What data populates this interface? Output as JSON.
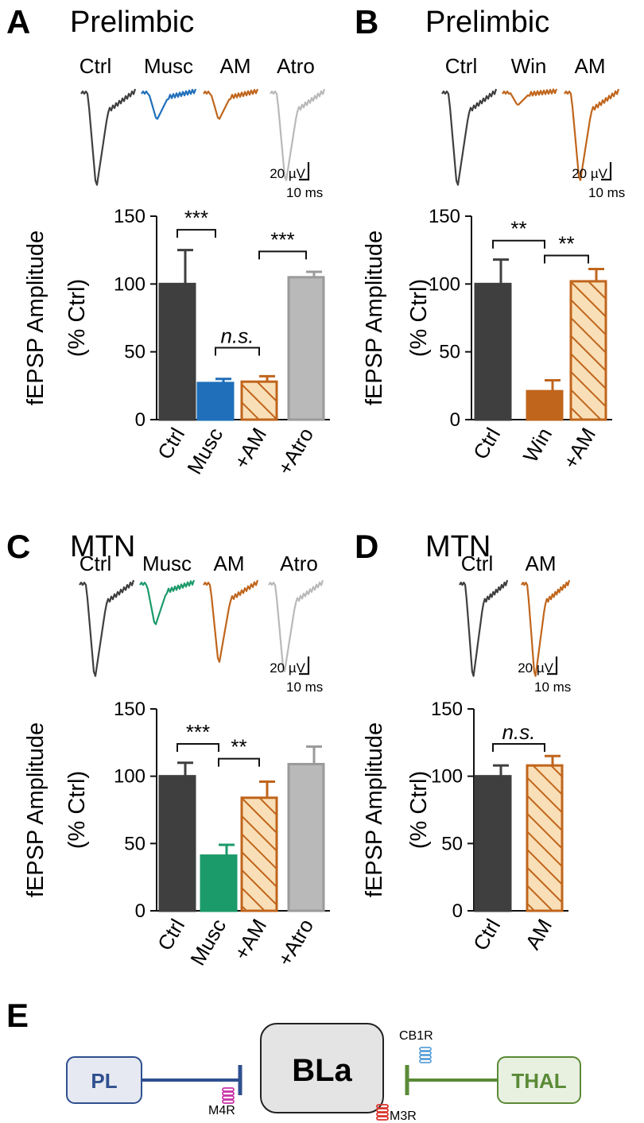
{
  "colors": {
    "ctrl": "#3f3f3f",
    "musc_pl": "#1f6fba",
    "musc_mtn": "#1b9a6a",
    "am": "#c0651c",
    "am_fill": "#f9dfb7",
    "atro": "#b9b9b9",
    "atro_edge": "#9a9a9a",
    "pl_blue": "#2f4f8f",
    "thal_green": "#5a8a36",
    "m4r": "#c832a8",
    "m3r": "#d9342b",
    "cb1r": "#5aa0d8"
  },
  "common": {
    "ylabel_line1": "fEPSP Amplitude",
    "ylabel_line2": "(% Ctrl)",
    "scalebar_v": "20 µV",
    "scalebar_h": "10 ms"
  },
  "panels": [
    {
      "letter": "A",
      "title": "Prelimbic",
      "trace_labels": [
        "Ctrl",
        "Musc",
        "AM",
        "Atro"
      ],
      "trace_colors": [
        "ctrl",
        "musc_pl",
        "am",
        "atro"
      ],
      "trace_depths": [
        1.0,
        0.3,
        0.3,
        0.95
      ]
    },
    {
      "letter": "B",
      "title": "Prelimbic",
      "trace_labels": [
        "Ctrl",
        "Win",
        "AM"
      ],
      "trace_colors": [
        "ctrl",
        "am",
        "am"
      ],
      "trace_depths": [
        1.0,
        0.15,
        0.95
      ]
    },
    {
      "letter": "C",
      "title": "MTN",
      "trace_labels": [
        "Ctrl",
        "Musc",
        "AM",
        "Atro"
      ],
      "trace_colors": [
        "ctrl",
        "musc_mtn",
        "am",
        "atro"
      ],
      "trace_depths": [
        1.0,
        0.45,
        0.85,
        0.95
      ]
    },
    {
      "letter": "D",
      "title": "MTN",
      "trace_labels": [
        "Ctrl",
        "AM"
      ],
      "trace_colors": [
        "ctrl",
        "am"
      ],
      "trace_depths": [
        1.0,
        1.0
      ]
    }
  ],
  "chart_data": [
    {
      "type": "bar",
      "panel": "A",
      "categories": [
        "Ctrl",
        "Musc",
        "+AM",
        "+Atro"
      ],
      "values": [
        100,
        27,
        28,
        105
      ],
      "errors": [
        25,
        3,
        4,
        4
      ],
      "styles": [
        "ctrl",
        "musc_pl",
        "am_hatch",
        "atro"
      ],
      "ylabel": "fEPSP Amplitude (% Ctrl)",
      "ylim": [
        0,
        150
      ],
      "yticks": [
        0,
        50,
        100,
        150
      ],
      "significance": [
        {
          "from": 0,
          "to": 1,
          "label": "***",
          "y": 140
        },
        {
          "from": 1,
          "to": 2,
          "label": "n.s.",
          "y": 53,
          "italic": true
        },
        {
          "from": 2,
          "to": 3,
          "label": "***",
          "y": 124
        }
      ]
    },
    {
      "type": "bar",
      "panel": "B",
      "categories": [
        "Ctrl",
        "Win",
        "+AM"
      ],
      "values": [
        100,
        21,
        102
      ],
      "errors": [
        18,
        8,
        9
      ],
      "styles": [
        "ctrl",
        "am",
        "am_hatch"
      ],
      "ylabel": "fEPSP Amplitude (% Ctrl)",
      "ylim": [
        0,
        150
      ],
      "yticks": [
        0,
        50,
        100,
        150
      ],
      "significance": [
        {
          "from": 0,
          "to": 1,
          "label": "**",
          "y": 132
        },
        {
          "from": 1,
          "to": 2,
          "label": "**",
          "y": 121
        }
      ]
    },
    {
      "type": "bar",
      "panel": "C",
      "categories": [
        "Ctrl",
        "Musc",
        "+AM",
        "+Atro"
      ],
      "values": [
        100,
        41,
        84,
        109
      ],
      "errors": [
        10,
        8,
        12,
        13
      ],
      "styles": [
        "ctrl",
        "musc_mtn",
        "am_hatch",
        "atro"
      ],
      "ylabel": "fEPSP Amplitude (% Ctrl)",
      "ylim": [
        0,
        150
      ],
      "yticks": [
        0,
        50,
        100,
        150
      ],
      "significance": [
        {
          "from": 0,
          "to": 1,
          "label": "***",
          "y": 124
        },
        {
          "from": 1,
          "to": 2,
          "label": "**",
          "y": 113
        }
      ]
    },
    {
      "type": "bar",
      "panel": "D",
      "categories": [
        "Ctrl",
        "AM"
      ],
      "values": [
        100,
        108
      ],
      "errors": [
        8,
        7
      ],
      "styles": [
        "ctrl",
        "am_hatch"
      ],
      "ylabel": "fEPSP Amplitude (% Ctrl)",
      "ylim": [
        0,
        150
      ],
      "yticks": [
        0,
        50,
        100,
        150
      ],
      "significance": [
        {
          "from": 0,
          "to": 1,
          "label": "n.s.",
          "y": 124,
          "italic": true
        }
      ]
    }
  ],
  "diagram": {
    "letter": "E",
    "center_label": "BLa",
    "left_label": "PL",
    "right_label": "THAL",
    "receptors": [
      "M4R",
      "M3R",
      "CB1R"
    ]
  }
}
